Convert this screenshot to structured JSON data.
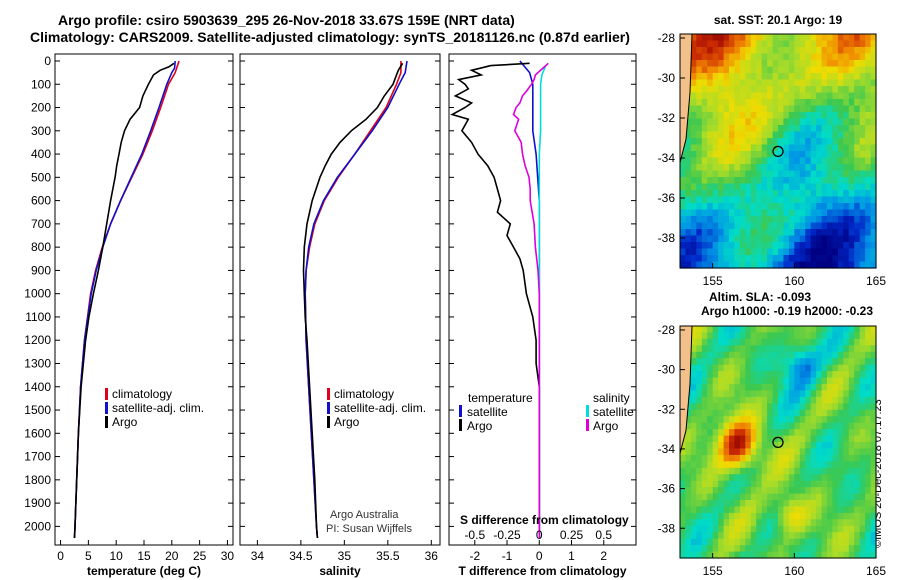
{
  "titles": {
    "line1": "Argo profile: csiro 5903639_295 26-Nov-2018 33.67S 159E (NRT data)",
    "line2": "Climatology: CARS2009. Satellite-adjusted climatology: synTS_20181126.nc (0.87d earlier)"
  },
  "depth_ticks": [
    0,
    100,
    200,
    300,
    400,
    500,
    600,
    700,
    800,
    900,
    1000,
    1100,
    1200,
    1300,
    1400,
    1500,
    1600,
    1700,
    1800,
    1900,
    2000
  ],
  "colors": {
    "climatology": "#e0001a",
    "satellite": "#1010cc",
    "argo": "#000000",
    "sal_diff": "#dd00dd",
    "sal_sat": "#00dddd"
  },
  "chart_data": [
    {
      "type": "line",
      "xlabel": "temperature (deg C)",
      "xlim": [
        -1,
        31
      ],
      "xticks": [
        0,
        5,
        10,
        15,
        20,
        25,
        30
      ],
      "ylim": [
        2080,
        -30
      ],
      "legend": [
        "climatology",
        "satellite-adj. clim.",
        "Argo"
      ],
      "series": [
        {
          "name": "climatology",
          "color": "#e0001a",
          "depth": [
            0,
            50,
            100,
            150,
            200,
            300,
            400,
            500,
            600,
            700,
            800,
            900,
            1000,
            1200,
            1400,
            1600,
            1800,
            2000,
            2050
          ],
          "values": [
            21.3,
            20.6,
            19.4,
            18.7,
            18.0,
            16.5,
            14.8,
            12.8,
            10.8,
            9.0,
            7.5,
            6.3,
            5.4,
            4.3,
            3.6,
            3.2,
            2.9,
            2.6,
            2.5
          ]
        },
        {
          "name": "satellite-adj. clim.",
          "color": "#1010cc",
          "depth": [
            0,
            30,
            50,
            100,
            150,
            200,
            300,
            400,
            500,
            600,
            700,
            800,
            900,
            1000,
            1200,
            1400,
            1600,
            1800,
            2000,
            2050
          ],
          "values": [
            20.6,
            20.5,
            20.0,
            19.1,
            18.4,
            17.7,
            16.2,
            14.6,
            12.7,
            10.8,
            9.0,
            7.6,
            6.4,
            5.5,
            4.3,
            3.6,
            3.2,
            2.9,
            2.6,
            2.5
          ]
        },
        {
          "name": "Argo",
          "color": "#000000",
          "depth": [
            10,
            25,
            40,
            60,
            100,
            150,
            200,
            250,
            300,
            350,
            400,
            450,
            500,
            600,
            700,
            800,
            900,
            1000,
            1100,
            1200,
            1400,
            1600,
            1800,
            2000,
            2050
          ],
          "values": [
            20.4,
            19.5,
            17.9,
            16.7,
            15.8,
            14.8,
            14.2,
            12.5,
            11.5,
            10.9,
            10.5,
            10.1,
            9.8,
            9.0,
            8.3,
            7.6,
            6.8,
            5.9,
            5.1,
            4.5,
            3.7,
            3.2,
            2.9,
            2.6,
            2.5
          ]
        }
      ]
    },
    {
      "type": "line",
      "xlabel": "salinity",
      "xlim": [
        33.8,
        36.1
      ],
      "xticks": [
        34,
        34.5,
        35,
        35.5,
        36
      ],
      "xtick_labels": [
        "34",
        "34.5",
        "35",
        "35.5",
        "36"
      ],
      "ylim": [
        2080,
        -30
      ],
      "legend": [
        "climatology",
        "satellite-adj. clim.",
        "Argo"
      ],
      "annotation": [
        "Argo Australia",
        "PI: Susan Wijffels"
      ],
      "series": [
        {
          "name": "climatology",
          "color": "#e0001a",
          "depth": [
            0,
            50,
            100,
            200,
            300,
            400,
            500,
            600,
            700,
            800,
            900,
            1000,
            1200,
            1400,
            1600,
            1800,
            2000,
            2050
          ],
          "values": [
            35.65,
            35.65,
            35.6,
            35.48,
            35.3,
            35.12,
            34.93,
            34.77,
            34.66,
            34.6,
            34.56,
            34.55,
            34.56,
            34.59,
            34.62,
            34.65,
            34.68,
            34.69
          ]
        },
        {
          "name": "satellite-adj. clim.",
          "color": "#1010cc",
          "depth": [
            0,
            50,
            100,
            200,
            300,
            400,
            500,
            600,
            700,
            800,
            900,
            1000,
            1200,
            1400,
            1600,
            1800,
            2000,
            2050
          ],
          "values": [
            35.72,
            35.7,
            35.63,
            35.5,
            35.32,
            35.12,
            34.92,
            34.76,
            34.65,
            34.59,
            34.56,
            34.55,
            34.56,
            34.59,
            34.62,
            34.65,
            34.68,
            34.69
          ]
        },
        {
          "name": "Argo",
          "color": "#000000",
          "depth": [
            10,
            40,
            60,
            100,
            150,
            200,
            250,
            300,
            350,
            400,
            450,
            500,
            600,
            700,
            800,
            900,
            1000,
            1100,
            1200,
            1400,
            1600,
            1800,
            2000,
            2050
          ],
          "values": [
            35.67,
            35.62,
            35.6,
            35.56,
            35.46,
            35.38,
            35.25,
            35.08,
            34.95,
            34.85,
            34.78,
            34.72,
            34.63,
            34.57,
            34.54,
            34.53,
            34.54,
            34.55,
            34.57,
            34.6,
            34.63,
            34.66,
            34.68,
            34.69
          ]
        }
      ]
    },
    {
      "type": "line",
      "xlabel": "T difference from climatology",
      "xlabel2": "S difference from climatology",
      "xlim": [
        -2.8,
        3.0
      ],
      "xticks": [
        -2,
        -1,
        0,
        1,
        2
      ],
      "xticks_S": [
        -0.5,
        -0.25,
        0,
        0.25,
        0.5
      ],
      "xtick_labels_S": [
        "-0.5",
        "-0.25",
        "0",
        "0.25",
        "0.5"
      ],
      "ylim": [
        2080,
        -30
      ],
      "legend_left": [
        "temperature",
        "satellite",
        "Argo"
      ],
      "legend_right": [
        "salinity",
        "satellite",
        "Argo"
      ],
      "series": [
        {
          "name": "T satellite",
          "color": "#1010cc",
          "depth": [
            0,
            50,
            100,
            200,
            300,
            400,
            600,
            800,
            1000,
            1500,
            2000,
            2050
          ],
          "values": [
            -0.6,
            -0.3,
            -0.2,
            -0.2,
            -0.2,
            -0.1,
            0,
            0,
            0,
            0,
            0,
            0
          ]
        },
        {
          "name": "T Argo",
          "color": "#000000",
          "depth": [
            10,
            20,
            40,
            60,
            80,
            100,
            120,
            150,
            180,
            200,
            230,
            250,
            300,
            350,
            400,
            450,
            500,
            550,
            600,
            650,
            700,
            750,
            800,
            850,
            900,
            1000,
            1100,
            1200,
            1300,
            1400,
            1500,
            1600,
            1800,
            2000,
            2050
          ],
          "values": [
            -0.3,
            -1.5,
            -2.1,
            -1.8,
            -2.5,
            -2.3,
            -2.2,
            -2.6,
            -2.1,
            -2.3,
            -2.7,
            -2.2,
            -2.4,
            -2.1,
            -1.9,
            -1.6,
            -1.4,
            -1.3,
            -1.2,
            -1.3,
            -0.9,
            -1.0,
            -0.8,
            -0.6,
            -0.5,
            -0.4,
            -0.2,
            -0.1,
            -0.1,
            0,
            0,
            0,
            0,
            0,
            0
          ]
        },
        {
          "name": "S satellite",
          "color": "#00dddd",
          "depth": [
            20,
            60,
            100,
            200,
            300,
            400,
            600,
            800,
            1000,
            1500,
            2000,
            2050
          ],
          "values": [
            0.05,
            0.02,
            0.01,
            0.01,
            0.01,
            0,
            0,
            0,
            0,
            0,
            0,
            0
          ]
        },
        {
          "name": "S Argo",
          "color": "#dd00dd",
          "depth": [
            10,
            30,
            60,
            80,
            100,
            130,
            150,
            180,
            200,
            230,
            250,
            300,
            350,
            400,
            450,
            500,
            550,
            600,
            700,
            800,
            900,
            1000,
            1200,
            1400,
            1600,
            1800,
            2000,
            2050
          ],
          "values": [
            0.07,
            0.03,
            -0.03,
            -0.04,
            -0.06,
            -0.1,
            -0.13,
            -0.15,
            -0.18,
            -0.2,
            -0.16,
            -0.19,
            -0.14,
            -0.13,
            -0.11,
            -0.08,
            -0.07,
            -0.07,
            -0.04,
            -0.03,
            -0.01,
            0,
            0,
            0,
            0,
            0,
            0,
            0
          ]
        }
      ]
    },
    {
      "type": "heatmap",
      "title": "sat. SST: 20.1  Argo: 19",
      "x_ticks": [
        155,
        160,
        165
      ],
      "y_ticks": [
        -28,
        -30,
        -32,
        -34,
        -36,
        -38
      ],
      "xlim": [
        153,
        165
      ],
      "ylim": [
        -39.5,
        -27.8
      ],
      "argo_lon": 159,
      "argo_lat": -33.67
    },
    {
      "type": "heatmap",
      "title": "Altim. SLA: -0.093",
      "subtitle": "Argo h1000: -0.19  h2000: -0.23",
      "x_ticks": [
        155,
        160,
        165
      ],
      "y_ticks": [
        -28,
        -30,
        -32,
        -34,
        -36,
        -38
      ],
      "xlim": [
        153,
        165
      ],
      "ylim": [
        -39.5,
        -27.8
      ],
      "argo_lon": 159,
      "argo_lat": -33.67
    }
  ],
  "footer_stamp": "©IMOS 20-Dec-2018 07:17:23"
}
